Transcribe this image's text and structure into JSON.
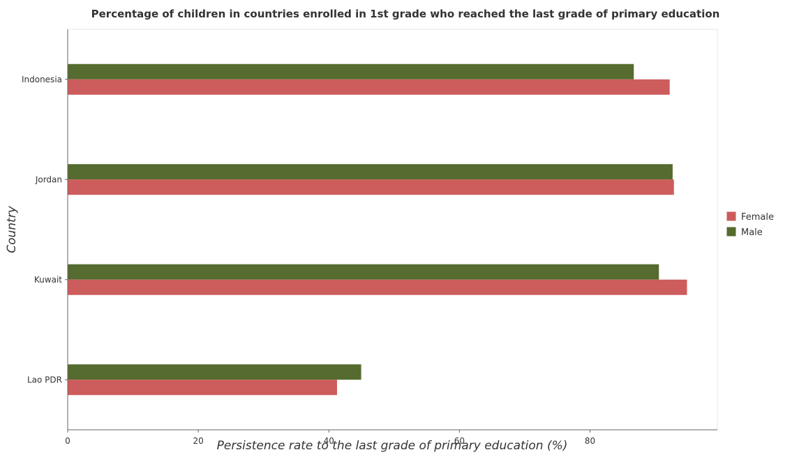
{
  "chart_data": {
    "type": "bar",
    "orientation": "horizontal",
    "title": "Percentage of children in countries enrolled in 1st grade who reached the last grade of primary education",
    "xlabel": "Persistence rate to the last grade of primary education (%)",
    "ylabel": "Country",
    "xlim": [
      0,
      99.5
    ],
    "xticks": [
      0,
      20,
      40,
      60,
      80
    ],
    "categories": [
      "Indonesia",
      "Jordan",
      "Kuwait",
      "Lao PDR"
    ],
    "series": [
      {
        "name": "Female",
        "color": "#cd5c5c",
        "values": [
          92.2,
          92.85,
          94.85,
          41.25
        ]
      },
      {
        "name": "Male",
        "color": "#556b2f",
        "values": [
          86.7,
          92.65,
          90.55,
          44.95
        ]
      }
    ],
    "legend_position": "right",
    "grid": false
  }
}
